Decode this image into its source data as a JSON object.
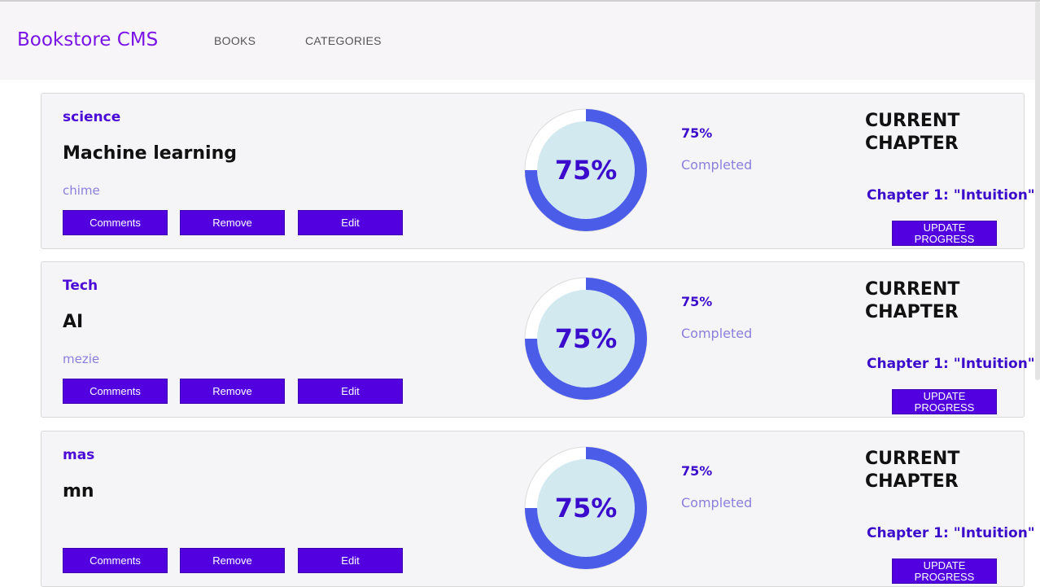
{
  "header": {
    "brand": "Bookstore CMS",
    "nav": [
      "BOOKS",
      "CATEGORIES"
    ]
  },
  "colors": {
    "accent": "#5200e0",
    "ring_progress": "#4a5ce8",
    "ring_inner": "#d2e9f0"
  },
  "books": [
    {
      "category": "science",
      "title": "Machine learning",
      "author": "chime",
      "progress": 0.75,
      "percent_label": "75%",
      "completed_label": "Completed",
      "current_chapter_label": "CURRENT CHAPTER",
      "chapter": "Chapter 1: \"Intuition\"",
      "buttons": {
        "comments": "Comments",
        "remove": "Remove",
        "edit": "Edit"
      },
      "update_label": "UPDATE PROGRESS"
    },
    {
      "category": "Tech",
      "title": "AI",
      "author": "mezie",
      "progress": 0.75,
      "percent_label": "75%",
      "completed_label": "Completed",
      "current_chapter_label": "CURRENT CHAPTER",
      "chapter": "Chapter 1: \"Intuition\"",
      "buttons": {
        "comments": "Comments",
        "remove": "Remove",
        "edit": "Edit"
      },
      "update_label": "UPDATE PROGRESS"
    },
    {
      "category": "mas",
      "title": "mn",
      "author": "",
      "progress": 0.75,
      "percent_label": "75%",
      "completed_label": "Completed",
      "current_chapter_label": "CURRENT CHAPTER",
      "chapter": "Chapter 1: \"Intuition\"",
      "buttons": {
        "comments": "Comments",
        "remove": "Remove",
        "edit": "Edit"
      },
      "update_label": "UPDATE PROGRESS"
    }
  ]
}
